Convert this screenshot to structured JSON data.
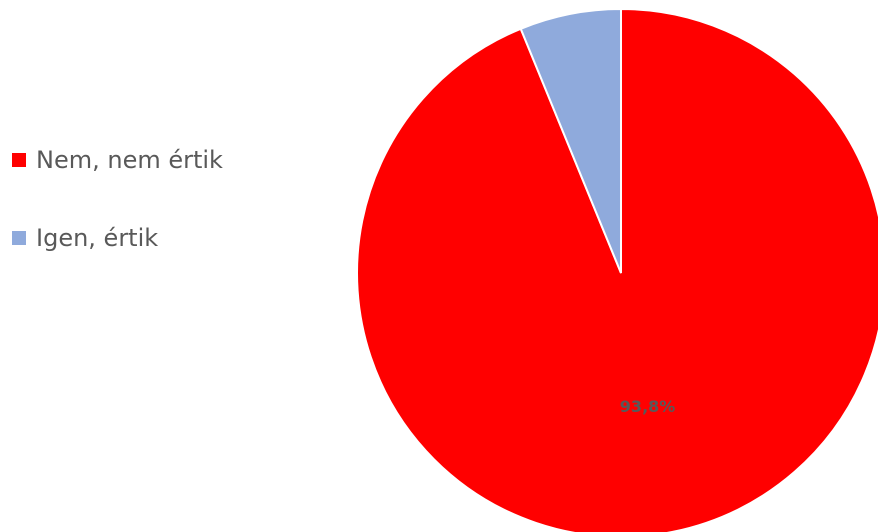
{
  "chart_data": {
    "type": "pie",
    "categories": [
      "Nem, nem értik",
      "Igen, értik"
    ],
    "values": [
      93.8,
      6.2
    ],
    "colors": [
      "#ff0000",
      "#8faadc"
    ],
    "data_labels": [
      "93,8%",
      ""
    ],
    "data_label_color": "#595959",
    "legend_position": "left",
    "start_angle_deg": 0,
    "direction": "clockwise"
  },
  "legend": {
    "items": [
      {
        "label": "Nem, nem értik",
        "color": "#ff0000"
      },
      {
        "label": "Igen, értik",
        "color": "#8faadc"
      }
    ]
  }
}
